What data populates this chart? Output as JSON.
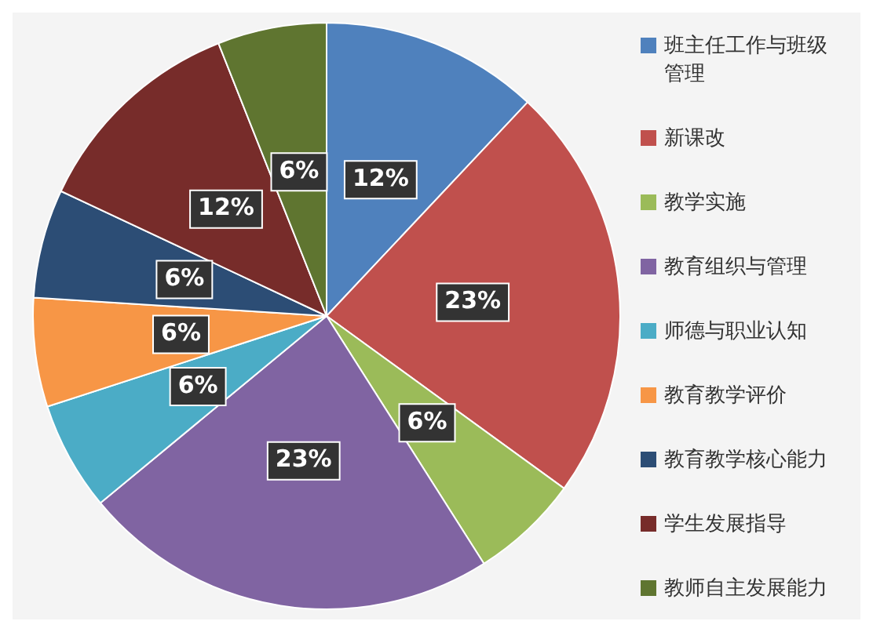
{
  "chart_data": {
    "type": "pie",
    "categories": [
      "班主任工作与班级管理",
      "新课改",
      "教学实施",
      "教育组织与管理",
      "师德与职业认知",
      "教育教学评价",
      "教育教学核心能力",
      "学生发展指导",
      "教师自主发展能力"
    ],
    "values": [
      12,
      23,
      6,
      23,
      6,
      6,
      6,
      12,
      6
    ],
    "value_labels": [
      "12%",
      "23%",
      "6%",
      "23%",
      "6%",
      "6%",
      "6%",
      "12%",
      "6%"
    ],
    "colors": [
      "#4f81bd",
      "#c0504d",
      "#9bbb59",
      "#8064a2",
      "#4bacc6",
      "#f79646",
      "#2c4d75",
      "#772c2a",
      "#5f7530"
    ],
    "legend": "right"
  }
}
